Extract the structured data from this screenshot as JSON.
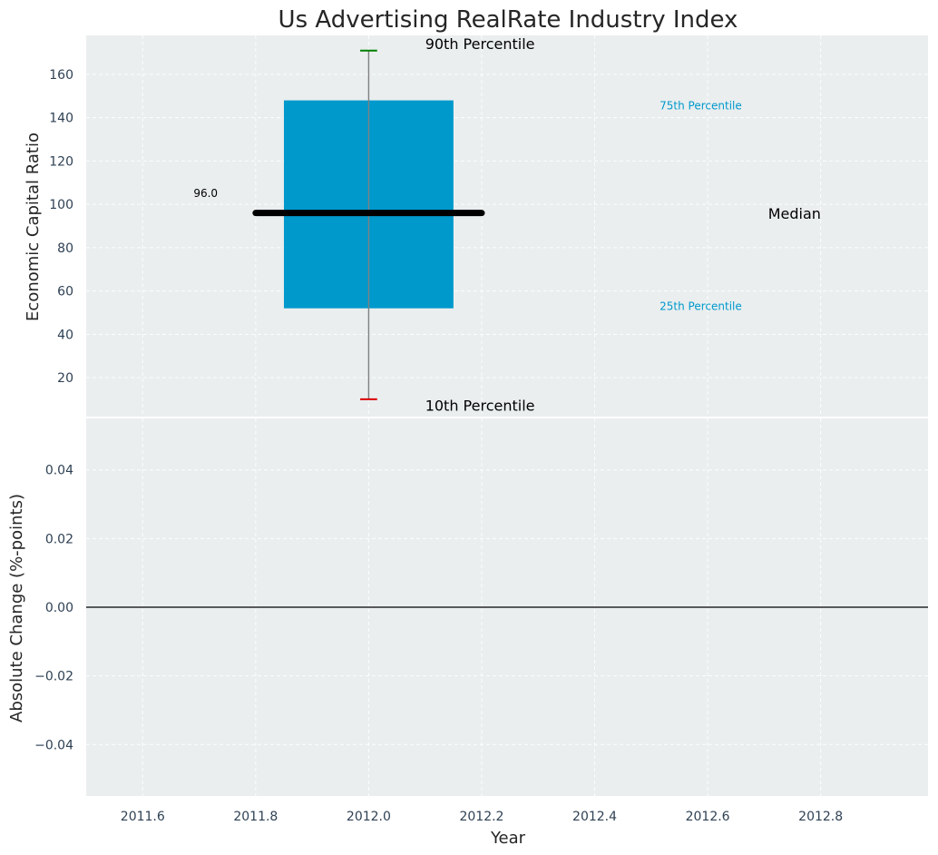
{
  "chart_data": [
    {
      "type": "box",
      "title": "Us Advertising RealRate Industry Index",
      "ylabel": "Economic Capital Ratio",
      "ylim": [
        2,
        178
      ],
      "yticks": [
        20,
        40,
        60,
        80,
        100,
        120,
        140,
        160
      ],
      "grid": true,
      "series": [
        {
          "x": 2012.0,
          "p10": 10,
          "p25": 52,
          "median": 96,
          "p75": 148,
          "p90": 171,
          "box_color": "#0099cc"
        }
      ],
      "annotations": {
        "median_value": "96.0",
        "median_label": "Median",
        "p90_label": "90th Percentile",
        "p75_label": "75th Percentile",
        "p25_label": "25th Percentile",
        "p10_label": "10th Percentile"
      },
      "colors": {
        "p90_cap": "#008000",
        "p10_cap": "#dd0000",
        "median": "#000000",
        "quartile_labels": "#0099cc"
      }
    },
    {
      "type": "line",
      "ylabel": "Absolute Change (%-points)",
      "xlabel": "Year",
      "ylim": [
        -0.055,
        0.055
      ],
      "yticks": [
        -0.04,
        -0.02,
        0.0,
        0.02,
        0.04
      ],
      "ytick_labels": [
        "−0.04",
        "−0.02",
        "0.00",
        "0.02",
        "0.04"
      ],
      "xlim": [
        2011.5,
        2012.99
      ],
      "xticks": [
        2011.6,
        2011.8,
        2012.0,
        2012.2,
        2012.4,
        2012.6,
        2012.8
      ],
      "xtick_labels": [
        "2011.6",
        "2011.8",
        "2012.0",
        "2012.2",
        "2012.4",
        "2012.6",
        "2012.8"
      ],
      "reference_line": 0.0,
      "grid": true,
      "series": []
    }
  ]
}
